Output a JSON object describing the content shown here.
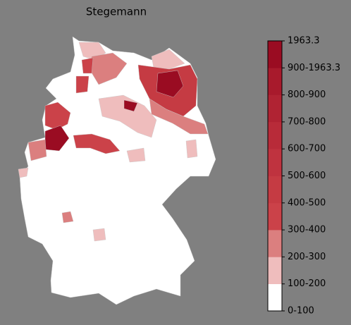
{
  "title": "Stegemann",
  "colorbar": {
    "ticks": [
      "0-100",
      "100-200",
      "200-300",
      "300-400",
      "400-500",
      "500-600",
      "600-700",
      "700-800",
      "800-900",
      "900-1963.3",
      "1963.3"
    ],
    "colors": [
      "#ffffff",
      "#efbdbd",
      "#db7f7f",
      "#cb4249",
      "#c53b43",
      "#bf333f",
      "#b82b39",
      "#b02333",
      "#a81a2c",
      "#9a0c22"
    ]
  }
}
